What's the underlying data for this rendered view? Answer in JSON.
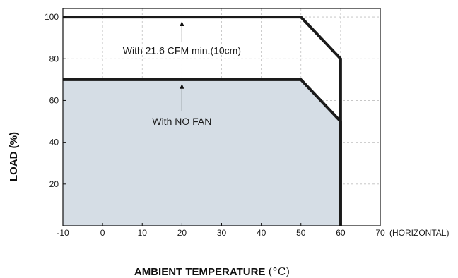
{
  "chart_data": {
    "type": "line",
    "title": "",
    "xlabel": "AMBIENT TEMPERATURE",
    "xlabel_unit": "(°C)",
    "ylabel": "LOAD (%)",
    "x_axis_note": "(HORIZONTAL)",
    "xlim": [
      -10,
      70
    ],
    "ylim": [
      0,
      100
    ],
    "x_ticks": [
      "-10",
      "0",
      "10",
      "20",
      "30",
      "40",
      "50",
      "60",
      "70"
    ],
    "y_ticks": [
      "20",
      "40",
      "60",
      "80",
      "100"
    ],
    "grid": true,
    "series": [
      {
        "color": "#1a1a1a",
        "points": [
          [
            -10,
            100
          ],
          [
            50,
            100
          ],
          [
            60,
            80
          ],
          [
            60,
            0
          ]
        ]
      },
      {
        "color": "#1a1a1a",
        "fill": "#d5dde5",
        "points": [
          [
            -10,
            70
          ],
          [
            50,
            70
          ],
          [
            60,
            50
          ],
          [
            60,
            0
          ]
        ]
      }
    ],
    "annotations": [
      {
        "text": "With 21.6 CFM min.(10cm)",
        "x": 20,
        "y": 84,
        "arrow_from": [
          20,
          88
        ],
        "arrow_to": [
          20,
          98
        ]
      },
      {
        "text": "With NO FAN",
        "x": 20,
        "y": 50,
        "arrow_from": [
          20,
          55
        ],
        "arrow_to": [
          20,
          68
        ]
      }
    ]
  }
}
